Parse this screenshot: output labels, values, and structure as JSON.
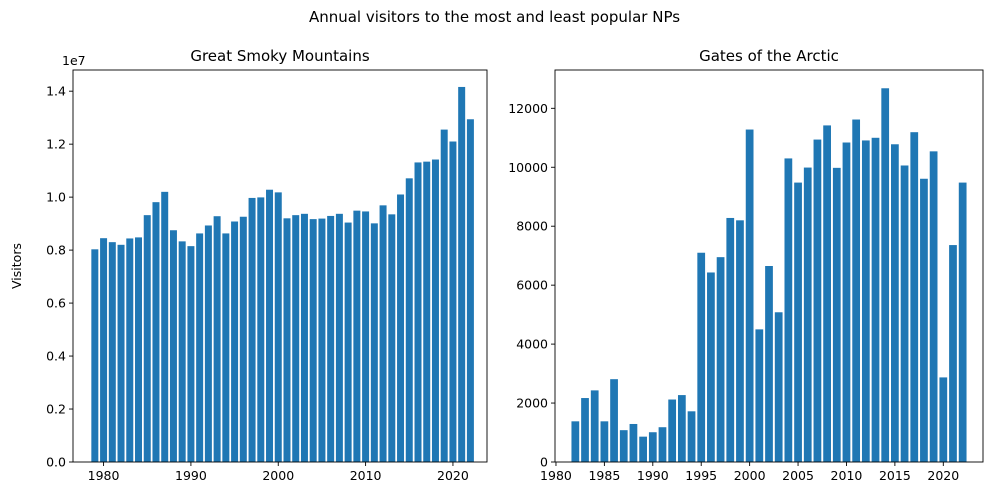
{
  "figure": {
    "suptitle": "Annual visitors to the most and least popular NPs",
    "bar_color": "#1f77b4"
  },
  "chart_data": [
    {
      "type": "bar",
      "title": "Great Smoky Mountains",
      "xlabel": "",
      "ylabel": "Visitors",
      "y_offset_label": "1e7",
      "grid": false,
      "xlim": [
        1976.5,
        2023.9
      ],
      "ylim": [
        0,
        14800000
      ],
      "xticks": [
        1980,
        1990,
        2000,
        2010,
        2020
      ],
      "yticks": [
        0,
        2000000,
        4000000,
        6000000,
        8000000,
        10000000,
        12000000,
        14000000
      ],
      "ytick_labels": [
        "0.0",
        "0.2",
        "0.4",
        "0.6",
        "0.8",
        "1.0",
        "1.2",
        "1.4"
      ],
      "x": [
        1979,
        1980,
        1981,
        1982,
        1983,
        1984,
        1985,
        1986,
        1987,
        1988,
        1989,
        1990,
        1991,
        1992,
        1993,
        1994,
        1995,
        1996,
        1997,
        1998,
        1999,
        2000,
        2001,
        2002,
        2003,
        2004,
        2005,
        2006,
        2007,
        2008,
        2009,
        2010,
        2011,
        2012,
        2013,
        2014,
        2015,
        2016,
        2017,
        2018,
        2019,
        2020,
        2021,
        2022
      ],
      "values": [
        8030000,
        8450000,
        8300000,
        8200000,
        8440000,
        8480000,
        9320000,
        9810000,
        10200000,
        8750000,
        8330000,
        8150000,
        8630000,
        8930000,
        9280000,
        8630000,
        9080000,
        9260000,
        9970000,
        9990000,
        10280000,
        10180000,
        9200000,
        9320000,
        9370000,
        9170000,
        9190000,
        9290000,
        9370000,
        9040000,
        9490000,
        9460000,
        9010000,
        9690000,
        9350000,
        10100000,
        10710000,
        11310000,
        11340000,
        11420000,
        12550000,
        12100000,
        14160000,
        12940000
      ]
    },
    {
      "type": "bar",
      "title": "Gates of the Arctic",
      "xlabel": "",
      "ylabel": "",
      "grid": false,
      "xlim": [
        1979.9,
        2024.1
      ],
      "ylim": [
        0,
        13300
      ],
      "xticks": [
        1980,
        1985,
        1990,
        1995,
        2000,
        2005,
        2010,
        2015,
        2020
      ],
      "yticks": [
        0,
        2000,
        4000,
        6000,
        8000,
        10000,
        12000
      ],
      "ytick_labels": [
        "0",
        "2000",
        "4000",
        "6000",
        "8000",
        "10000",
        "12000"
      ],
      "x": [
        1982,
        1983,
        1984,
        1985,
        1986,
        1987,
        1988,
        1989,
        1990,
        1991,
        1992,
        1993,
        1994,
        1995,
        1996,
        1997,
        1998,
        1999,
        2000,
        2001,
        2002,
        2003,
        2004,
        2005,
        2006,
        2007,
        2008,
        2009,
        2010,
        2011,
        2012,
        2013,
        2014,
        2015,
        2016,
        2017,
        2018,
        2019,
        2020,
        2021,
        2022
      ],
      "values": [
        1380,
        2170,
        2430,
        1380,
        2810,
        1080,
        1290,
        860,
        1010,
        1180,
        2120,
        2270,
        1720,
        7100,
        6430,
        6950,
        8280,
        8200,
        11280,
        4500,
        6650,
        5080,
        10300,
        9480,
        9990,
        10940,
        11420,
        9980,
        10840,
        11620,
        10910,
        11000,
        12680,
        10780,
        10060,
        11190,
        9610,
        10540,
        2870,
        7360,
        9480
      ]
    }
  ]
}
